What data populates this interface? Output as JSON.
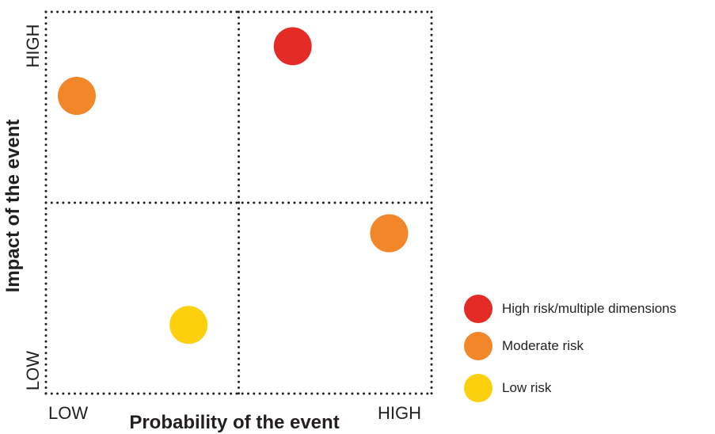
{
  "axes": {
    "x_title": "Probability of the event",
    "y_title": "Impact of the event",
    "x_low": "LOW",
    "x_high": "HIGH",
    "y_low": "LOW",
    "y_high": "HIGH"
  },
  "colors": {
    "high": "#e42b25",
    "moderate": "#f2872a",
    "low": "#fdd00e",
    "grid": "#231f20"
  },
  "legend": [
    {
      "label": "High risk/multiple dimensions",
      "level": "high"
    },
    {
      "label": "Moderate risk",
      "level": "moderate"
    },
    {
      "label": "Low risk",
      "level": "low"
    }
  ],
  "chart_data": {
    "type": "scatter",
    "grid": "2x2 dotted quadrants",
    "xlim": [
      0,
      1
    ],
    "ylim": [
      0,
      1
    ],
    "points": [
      {
        "x": 0.08,
        "y": 0.78,
        "level": "moderate"
      },
      {
        "x": 0.64,
        "y": 0.91,
        "level": "high"
      },
      {
        "x": 0.89,
        "y": 0.42,
        "level": "moderate"
      },
      {
        "x": 0.37,
        "y": 0.18,
        "level": "low"
      }
    ]
  }
}
